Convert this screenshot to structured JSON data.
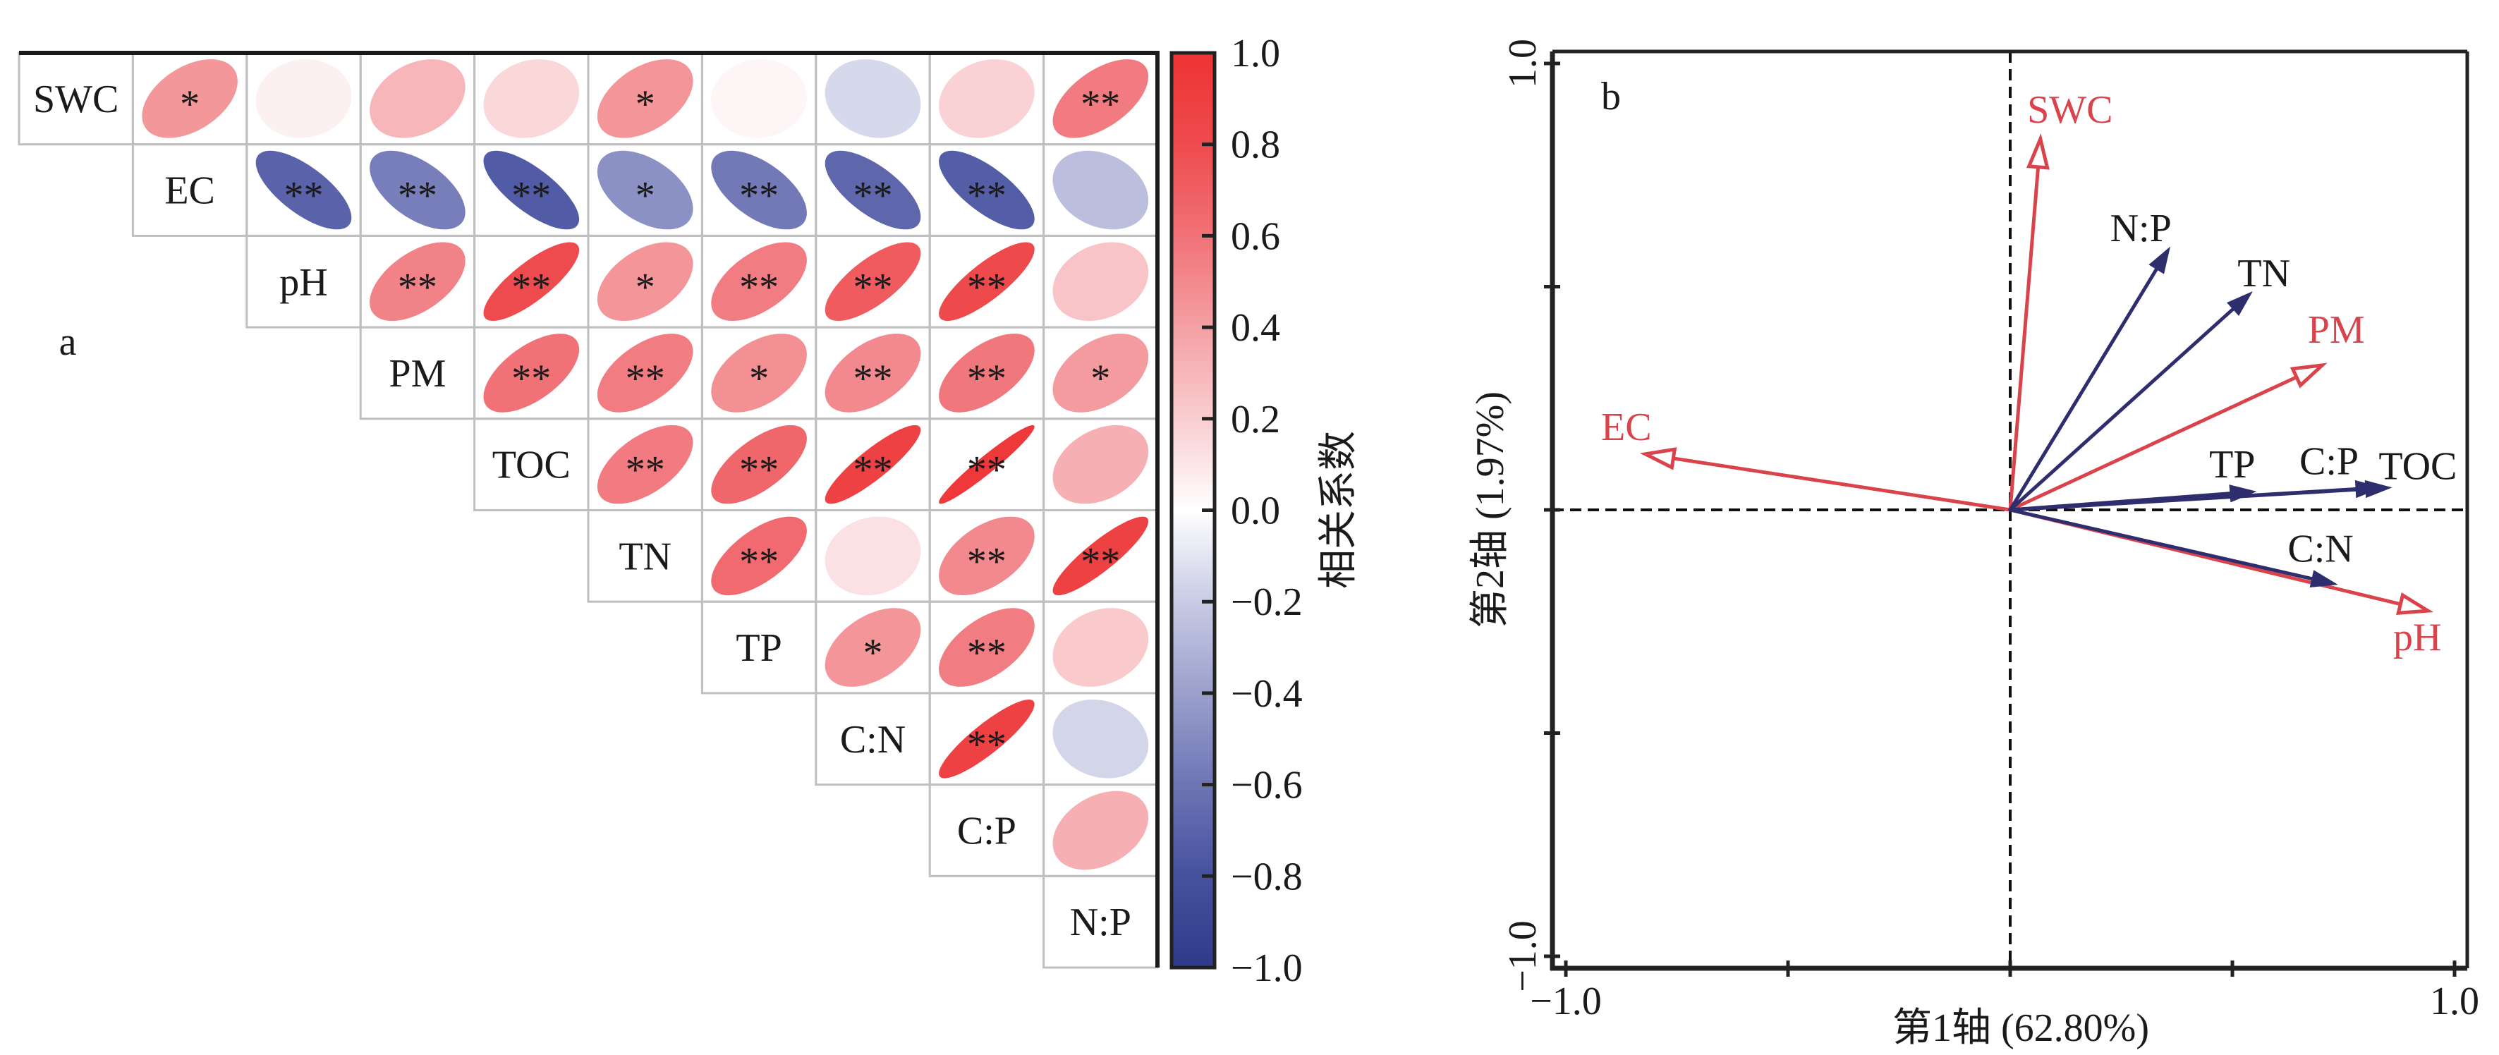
{
  "chart_data": [
    {
      "type": "heatmap",
      "method": "ellipse",
      "triangle": "upper",
      "title": "a",
      "variables": [
        "SWC",
        "EC",
        "pH",
        "PM",
        "TOC",
        "TN",
        "TP",
        "C:N",
        "C:P",
        "N:P"
      ],
      "cells": [
        {
          "row": "SWC",
          "col": "EC",
          "r": 0.44,
          "sig": "*"
        },
        {
          "row": "SWC",
          "col": "pH",
          "r": 0.06,
          "sig": ""
        },
        {
          "row": "SWC",
          "col": "PM",
          "r": 0.3,
          "sig": ""
        },
        {
          "row": "SWC",
          "col": "TOC",
          "r": 0.16,
          "sig": ""
        },
        {
          "row": "SWC",
          "col": "TN",
          "r": 0.45,
          "sig": "*"
        },
        {
          "row": "SWC",
          "col": "TP",
          "r": 0.04,
          "sig": ""
        },
        {
          "row": "SWC",
          "col": "C:N",
          "r": -0.15,
          "sig": ""
        },
        {
          "row": "SWC",
          "col": "C:P",
          "r": 0.18,
          "sig": ""
        },
        {
          "row": "SWC",
          "col": "N:P",
          "r": 0.56,
          "sig": "**"
        },
        {
          "row": "EC",
          "col": "pH",
          "r": -0.7,
          "sig": "**"
        },
        {
          "row": "EC",
          "col": "PM",
          "r": -0.56,
          "sig": "**"
        },
        {
          "row": "EC",
          "col": "TOC",
          "r": -0.74,
          "sig": "**"
        },
        {
          "row": "EC",
          "col": "TN",
          "r": -0.47,
          "sig": "*"
        },
        {
          "row": "EC",
          "col": "TP",
          "r": -0.58,
          "sig": "**"
        },
        {
          "row": "EC",
          "col": "C:N",
          "r": -0.68,
          "sig": "**"
        },
        {
          "row": "EC",
          "col": "C:P",
          "r": -0.73,
          "sig": "**"
        },
        {
          "row": "EC",
          "col": "N:P",
          "r": -0.26,
          "sig": ""
        },
        {
          "row": "pH",
          "col": "PM",
          "r": 0.53,
          "sig": "**"
        },
        {
          "row": "pH",
          "col": "TOC",
          "r": 0.8,
          "sig": "**"
        },
        {
          "row": "pH",
          "col": "TN",
          "r": 0.45,
          "sig": "*"
        },
        {
          "row": "pH",
          "col": "TP",
          "r": 0.55,
          "sig": "**"
        },
        {
          "row": "pH",
          "col": "C:N",
          "r": 0.72,
          "sig": "**"
        },
        {
          "row": "pH",
          "col": "C:P",
          "r": 0.82,
          "sig": "**"
        },
        {
          "row": "pH",
          "col": "N:P",
          "r": 0.24,
          "sig": ""
        },
        {
          "row": "PM",
          "col": "TOC",
          "r": 0.6,
          "sig": "**"
        },
        {
          "row": "PM",
          "col": "TN",
          "r": 0.55,
          "sig": "**"
        },
        {
          "row": "PM",
          "col": "TP",
          "r": 0.47,
          "sig": "*"
        },
        {
          "row": "PM",
          "col": "C:N",
          "r": 0.5,
          "sig": "**"
        },
        {
          "row": "PM",
          "col": "C:P",
          "r": 0.58,
          "sig": "**"
        },
        {
          "row": "PM",
          "col": "N:P",
          "r": 0.42,
          "sig": "*"
        },
        {
          "row": "TOC",
          "col": "TN",
          "r": 0.56,
          "sig": "**"
        },
        {
          "row": "TOC",
          "col": "TP",
          "r": 0.66,
          "sig": "**"
        },
        {
          "row": "TOC",
          "col": "C:N",
          "r": 0.88,
          "sig": "**"
        },
        {
          "row": "TOC",
          "col": "C:P",
          "r": 0.96,
          "sig": "**"
        },
        {
          "row": "TOC",
          "col": "N:P",
          "r": 0.33,
          "sig": ""
        },
        {
          "row": "TN",
          "col": "TP",
          "r": 0.64,
          "sig": "**"
        },
        {
          "row": "TN",
          "col": "C:N",
          "r": 0.12,
          "sig": ""
        },
        {
          "row": "TN",
          "col": "C:P",
          "r": 0.5,
          "sig": "**"
        },
        {
          "row": "TN",
          "col": "N:P",
          "r": 0.88,
          "sig": "**"
        },
        {
          "row": "TP",
          "col": "C:N",
          "r": 0.45,
          "sig": "*"
        },
        {
          "row": "TP",
          "col": "C:P",
          "r": 0.55,
          "sig": "**"
        },
        {
          "row": "TP",
          "col": "N:P",
          "r": 0.22,
          "sig": ""
        },
        {
          "row": "C:N",
          "col": "C:P",
          "r": 0.88,
          "sig": "**"
        },
        {
          "row": "C:N",
          "col": "N:P",
          "r": -0.16,
          "sig": ""
        },
        {
          "row": "C:P",
          "col": "N:P",
          "r": 0.33,
          "sig": ""
        }
      ],
      "colorbar": {
        "label": "相关系数",
        "range": [
          -1,
          1
        ],
        "ticks": [
          1.0,
          0.8,
          0.6,
          0.4,
          0.2,
          0.0,
          -0.2,
          -0.4,
          -0.6,
          -0.8,
          -1.0
        ],
        "tick_labels": [
          "1.0",
          "0.8",
          "0.6",
          "0.4",
          "0.2",
          "0.0",
          "−0.2",
          "−0.4",
          "−0.6",
          "−0.8",
          "−1.0"
        ],
        "palette": [
          {
            "v": -1.0,
            "c": "#2F3A8A"
          },
          {
            "v": -0.8,
            "c": "#46519F"
          },
          {
            "v": -0.6,
            "c": "#6E75B5"
          },
          {
            "v": -0.4,
            "c": "#9BA0CC"
          },
          {
            "v": -0.2,
            "c": "#C8CBE4"
          },
          {
            "v": 0.0,
            "c": "#FFFFFF"
          },
          {
            "v": 0.2,
            "c": "#F9CDD0"
          },
          {
            "v": 0.4,
            "c": "#F4A0A4"
          },
          {
            "v": 0.6,
            "c": "#F07277"
          },
          {
            "v": 0.8,
            "c": "#EE4B4E"
          },
          {
            "v": 1.0,
            "c": "#EE3334"
          }
        ]
      }
    },
    {
      "type": "scatter",
      "subtype": "ordination biplot (vectors from origin)",
      "title": "b",
      "xlabel": "第1轴 (62.80%)",
      "ylabel": "第2轴 (1.97%)",
      "xlim": [
        -1.03,
        1.03
      ],
      "ylim": [
        -1.03,
        1.03
      ],
      "xticks": [
        -1.0,
        -0.5,
        0.0,
        0.5,
        1.0
      ],
      "xtick_labels": [
        "−1.0",
        "",
        "",
        "",
        "1.0"
      ],
      "yticks": [
        -1.0,
        -0.5,
        0.0,
        0.5,
        1.0
      ],
      "ytick_labels": [
        "−1.0",
        "",
        "",
        "",
        "1.0"
      ],
      "reference_lines": {
        "x": 0,
        "y": 0,
        "style": "dashed"
      },
      "grid": false,
      "series": [
        {
          "color": "#D9434B",
          "label_color": "#D9434B",
          "arrowhead": "open",
          "vectors": [
            {
              "label": "SWC",
              "x": 0.068,
              "y": 0.831
            },
            {
              "label": "EC",
              "x": -0.821,
              "y": 0.125
            },
            {
              "label": "PM",
              "x": 0.702,
              "y": 0.324
            },
            {
              "label": "pH",
              "x": 0.94,
              "y": -0.226
            }
          ]
        },
        {
          "color": "#2E2E6E",
          "label_color": "#1A1A1A",
          "arrowhead": "filled",
          "vectors": [
            {
              "label": "N:P",
              "x": 0.359,
              "y": 0.588
            },
            {
              "label": "TN",
              "x": 0.544,
              "y": 0.488
            },
            {
              "label": "TP",
              "x": 0.552,
              "y": 0.041
            },
            {
              "label": "C:P",
              "x": 0.835,
              "y": 0.05
            },
            {
              "label": "TOC",
              "x": 0.857,
              "y": 0.05
            },
            {
              "label": "C:N",
              "x": 0.735,
              "y": -0.167
            }
          ]
        }
      ]
    }
  ]
}
